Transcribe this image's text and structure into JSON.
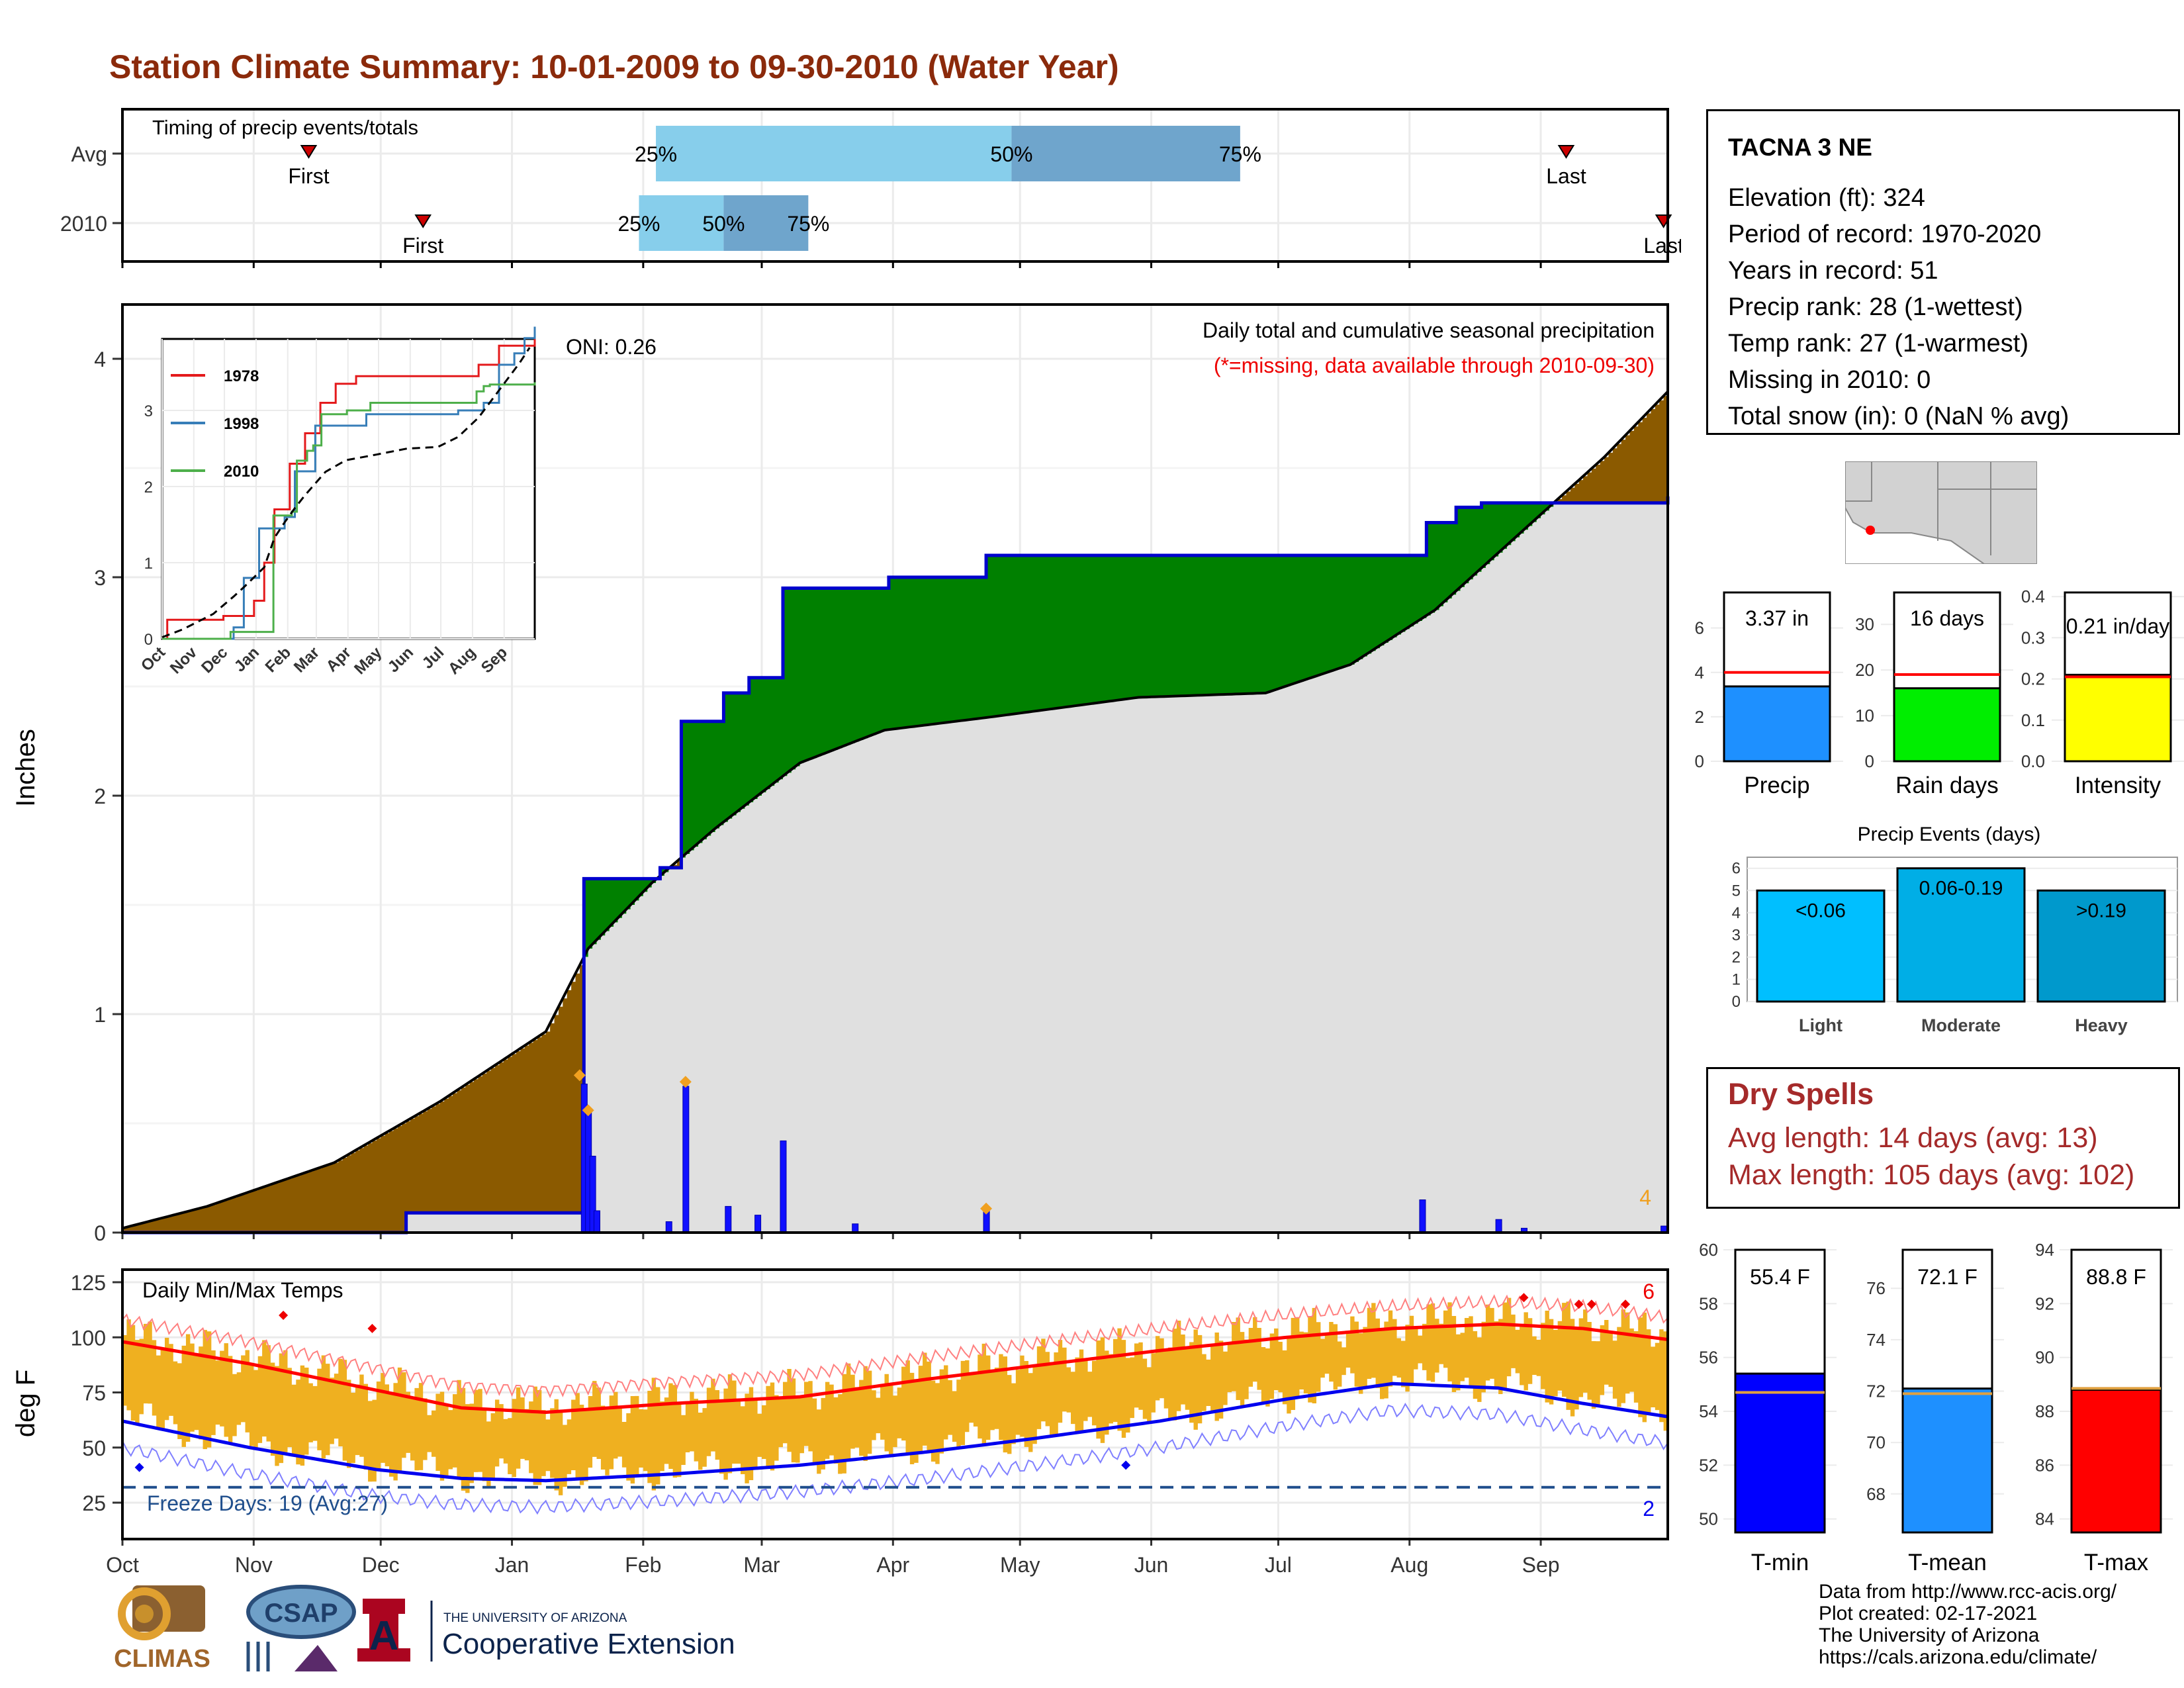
{
  "header": {
    "title": "Station Climate Summary: 10-01-2009 to 09-30-2010 (Water Year)"
  },
  "timing": {
    "label": "Timing of precip events/totals",
    "rows": [
      {
        "name": "Avg",
        "first_label": "First",
        "last_label": "Last",
        "first_day": 44,
        "last_day": 341,
        "pct_days": [
          126,
          210,
          264
        ],
        "pct_labels": [
          "25%",
          "50%",
          "75%"
        ]
      },
      {
        "name": "2010",
        "first_label": "First",
        "last_label": "Last",
        "first_day": 71,
        "last_day": 364,
        "pct_days": [
          122,
          142,
          162
        ],
        "pct_labels": [
          "25%",
          "50%",
          "75%"
        ]
      }
    ]
  },
  "precip_panel": {
    "title": "Daily total and cumulative seasonal precipitation",
    "subtitle": "(*=missing, data available through 2010-09-30)",
    "oni": "ONI: 0.26",
    "ylabel": "Inches",
    "yticks": [
      "0",
      "1",
      "2",
      "3",
      "4"
    ],
    "corner_count": "4",
    "colors": {
      "above": "#008000",
      "below": "#8b5a00",
      "cum_line": "#0000cd",
      "avg_fill": "#e0e0e0",
      "event": "#f0a020"
    }
  },
  "inset": {
    "legend": [
      "1978",
      "1998",
      "2010"
    ],
    "legend_colors": [
      "#e41a1c",
      "#377eb8",
      "#4daf4a"
    ],
    "yticks": [
      "0",
      "1",
      "2",
      "3"
    ],
    "months": [
      "Oct",
      "Nov",
      "Dec",
      "Jan",
      "Feb",
      "Mar",
      "Apr",
      "May",
      "Jun",
      "Jul",
      "Aug",
      "Sep"
    ]
  },
  "temp_panel": {
    "title": "Daily Min/Max Temps",
    "ylabel": "deg F",
    "yticks": [
      "25",
      "50",
      "75",
      "100",
      "125"
    ],
    "freeze_label": "Freeze Days: 19 (Avg:27)",
    "max_count": "6",
    "min_count": "2",
    "months": [
      "Oct",
      "Nov",
      "Dec",
      "Jan",
      "Feb",
      "Mar",
      "Apr",
      "May",
      "Jun",
      "Jul",
      "Aug",
      "Sep"
    ]
  },
  "station": {
    "name": "TACNA 3 NE",
    "lines": [
      "Elevation (ft): 324",
      "Period of record: 1970-2020",
      "Years in record: 51",
      "Precip rank: 28 (1-wettest)",
      "Temp rank: 27 (1-warmest)",
      "Missing in 2010: 0",
      "Total snow (in): 0 (NaN % avg)"
    ]
  },
  "mini_bars": [
    {
      "label": "Precip",
      "value_text": "3.37 in",
      "value": 3.37,
      "avg": 4.0,
      "ymax": 7.6,
      "ticks": [
        "0",
        "2",
        "4",
        "6"
      ],
      "color": "#1e90ff"
    },
    {
      "label": "Rain days",
      "value_text": "16 days",
      "value": 16,
      "avg": 19,
      "ymax": 37,
      "ticks": [
        "0",
        "10",
        "20",
        "30"
      ],
      "color": "#00ee00"
    },
    {
      "label": "Intensity",
      "value_text": "0.21 in/day",
      "value": 0.21,
      "avg": 0.205,
      "ymax": 0.41,
      "ticks": [
        "0.0",
        "0.1",
        "0.2",
        "0.3",
        "0.4"
      ],
      "color": "#ffff00"
    }
  ],
  "precip_events": {
    "title": "Precip Events (days)",
    "categories": [
      "Light",
      "Moderate",
      "Heavy"
    ],
    "labels": [
      "<0.06",
      "0.06-0.19",
      ">0.19"
    ],
    "values": [
      5,
      6,
      5
    ],
    "ticks": [
      "0",
      "1",
      "2",
      "3",
      "4",
      "5",
      "6"
    ],
    "colors": [
      "#00bfff",
      "#00aee6",
      "#0099cc"
    ]
  },
  "dry_spells": {
    "title": "Dry Spells",
    "avg_line": "Avg length: 14 days (avg: 13)",
    "max_line": "Max length: 105 days (avg: 102)"
  },
  "temp_bars": [
    {
      "label": "T-min",
      "value_text": "55.4 F",
      "value": 55.4,
      "avg": 54.7,
      "ymin": 49.5,
      "ymax": 60,
      "ticks": [
        "50",
        "52",
        "54",
        "56",
        "58",
        "60"
      ],
      "color": "#0000ff"
    },
    {
      "label": "T-mean",
      "value_text": "72.1 F",
      "value": 72.1,
      "avg": 71.9,
      "ymin": 66.5,
      "ymax": 77.5,
      "ticks": [
        "68",
        "70",
        "72",
        "74",
        "76"
      ],
      "color": "#1e90ff"
    },
    {
      "label": "T-max",
      "value_text": "88.8 F",
      "value": 88.8,
      "avg": 88.85,
      "ymin": 83.5,
      "ymax": 94,
      "ticks": [
        "84",
        "86",
        "88",
        "90",
        "92",
        "94"
      ],
      "color": "#ff0000"
    }
  ],
  "footer": {
    "lines": [
      "Data from http://www.rcc-acis.org/",
      "Plot created: 02-17-2021",
      "The University of Arizona",
      "https://cals.arizona.edu/climate/"
    ]
  },
  "logos": {
    "climas": "CLIMAS",
    "csap": "CSAP",
    "ua_small": "THE UNIVERSITY OF ARIZONA",
    "ua_big": "Cooperative Extension",
    "ua_letter": "A"
  },
  "chart_data": [
    {
      "type": "line",
      "title": "Daily total and cumulative seasonal precipitation",
      "ylabel": "Inches",
      "ylim": [
        0,
        4.25
      ],
      "x": [
        "Oct",
        "Nov",
        "Dec",
        "Jan",
        "Feb",
        "Mar",
        "Apr",
        "May",
        "Jun",
        "Jul",
        "Aug",
        "Sep"
      ],
      "series": [
        {
          "name": "2010",
          "points": [
            [
              0,
              0
            ],
            [
              67,
              0.09
            ],
            [
              108,
              0.09
            ],
            [
              109,
              1.62
            ],
            [
              126,
              1.62
            ],
            [
              127,
              1.67
            ],
            [
              131,
              1.67
            ],
            [
              132,
              2.34
            ],
            [
              141,
              2.34
            ],
            [
              142,
              2.47
            ],
            [
              147,
              2.47
            ],
            [
              148,
              2.54
            ],
            [
              155,
              2.54
            ],
            [
              156,
              2.95
            ],
            [
              180,
              2.95
            ],
            [
              181,
              3.0
            ],
            [
              203,
              3.0
            ],
            [
              204,
              3.1
            ],
            [
              307,
              3.1
            ],
            [
              308,
              3.25
            ],
            [
              314,
              3.25
            ],
            [
              315,
              3.32
            ],
            [
              320,
              3.32
            ],
            [
              321,
              3.34
            ],
            [
              364,
              3.34
            ],
            [
              365,
              3.37
            ]
          ]
        },
        {
          "name": "avg",
          "points": [
            [
              0,
              0.02
            ],
            [
              20,
              0.12
            ],
            [
              50,
              0.32
            ],
            [
              75,
              0.6
            ],
            [
              100,
              0.92
            ],
            [
              110,
              1.3
            ],
            [
              125,
              1.6
            ],
            [
              140,
              1.85
            ],
            [
              160,
              2.15
            ],
            [
              180,
              2.3
            ],
            [
              205,
              2.36
            ],
            [
              240,
              2.45
            ],
            [
              270,
              2.47
            ],
            [
              290,
              2.6
            ],
            [
              310,
              2.85
            ],
            [
              330,
              3.2
            ],
            [
              350,
              3.55
            ],
            [
              365,
              3.85
            ]
          ]
        }
      ],
      "daily_bars": [
        [
          109,
          0.68
        ],
        [
          110,
          0.55
        ],
        [
          111,
          0.35
        ],
        [
          112,
          0.1
        ],
        [
          129,
          0.05
        ],
        [
          133,
          0.67
        ],
        [
          143,
          0.12
        ],
        [
          150,
          0.08
        ],
        [
          156,
          0.42
        ],
        [
          173,
          0.04
        ],
        [
          204,
          0.1
        ],
        [
          307,
          0.15
        ],
        [
          325,
          0.06
        ],
        [
          331,
          0.02
        ],
        [
          364,
          0.03
        ]
      ]
    },
    {
      "type": "line",
      "title": "Daily Min/Max Temps",
      "ylabel": "deg F",
      "ylim": [
        10,
        132
      ],
      "series": [
        {
          "name": "avg max",
          "points": [
            [
              0,
              98
            ],
            [
              30,
              88
            ],
            [
              60,
              76
            ],
            [
              80,
              68
            ],
            [
              100,
              66
            ],
            [
              130,
              70
            ],
            [
              160,
              73
            ],
            [
              190,
              81
            ],
            [
              215,
              87
            ],
            [
              245,
              94
            ],
            [
              275,
              100
            ],
            [
              300,
              104
            ],
            [
              325,
              106
            ],
            [
              345,
              104
            ],
            [
              365,
              99
            ]
          ]
        },
        {
          "name": "avg min",
          "points": [
            [
              0,
              62
            ],
            [
              30,
              50
            ],
            [
              60,
              40
            ],
            [
              80,
              36
            ],
            [
              100,
              35
            ],
            [
              130,
              38
            ],
            [
              160,
              42
            ],
            [
              190,
              48
            ],
            [
              215,
              54
            ],
            [
              245,
              62
            ],
            [
              275,
              72
            ],
            [
              300,
              79
            ],
            [
              325,
              77
            ],
            [
              345,
              70
            ],
            [
              365,
              64
            ]
          ]
        }
      ],
      "freeze_threshold": 32
    }
  ]
}
